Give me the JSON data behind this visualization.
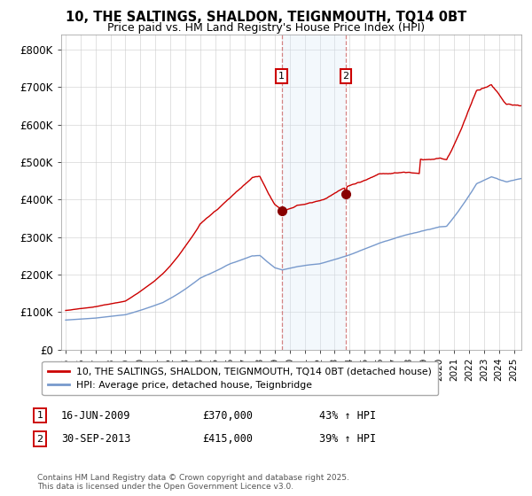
{
  "title_line1": "10, THE SALTINGS, SHALDON, TEIGNMOUTH, TQ14 0BT",
  "title_line2": "Price paid vs. HM Land Registry's House Price Index (HPI)",
  "title_fontsize": 10.5,
  "subtitle_fontsize": 9,
  "ylim": [
    0,
    840000
  ],
  "yticks": [
    0,
    100000,
    200000,
    300000,
    400000,
    500000,
    600000,
    700000,
    800000
  ],
  "ytick_labels": [
    "£0",
    "£100K",
    "£200K",
    "£300K",
    "£400K",
    "£500K",
    "£600K",
    "£700K",
    "£800K"
  ],
  "red_color": "#cc0000",
  "blue_color": "#7799cc",
  "shade_color": "#d8e8f8",
  "marker1_date": 2009.46,
  "marker2_date": 2013.75,
  "marker1_value": 370000,
  "marker2_value": 415000,
  "legend_label_red": "10, THE SALTINGS, SHALDON, TEIGNMOUTH, TQ14 0BT (detached house)",
  "legend_label_blue": "HPI: Average price, detached house, Teignbridge",
  "annotation1_num": "1",
  "annotation2_num": "2",
  "note1_date": "16-JUN-2009",
  "note1_price": "£370,000",
  "note1_hpi": "43% ↑ HPI",
  "note2_date": "30-SEP-2013",
  "note2_price": "£415,000",
  "note2_hpi": "39% ↑ HPI",
  "copyright": "Contains HM Land Registry data © Crown copyright and database right 2025.\nThis data is licensed under the Open Government Licence v3.0.",
  "background_color": "#ffffff",
  "grid_color": "#cccccc"
}
